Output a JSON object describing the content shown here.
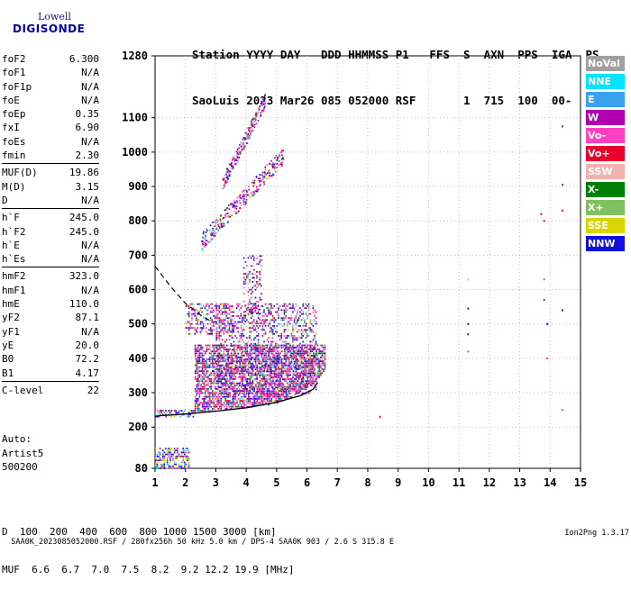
{
  "logo": {
    "line1": "Lowell",
    "line2": "DIGISONDE"
  },
  "header": {
    "line1": "Station YYYY DAY   DDD HHMMSS P1   FFS  S  AXN  PPS  IGA  PS",
    "line2": "SaoLuis 2023 Mar26 085 052000 RSF       1  715  100  00-  11"
  },
  "params": [
    [
      [
        "foF2",
        "6.300"
      ],
      [
        "foF1",
        "N/A"
      ],
      [
        "foF1p",
        "N/A"
      ],
      [
        "foE",
        "N/A"
      ],
      [
        "foEp",
        "0.35"
      ],
      [
        "fxI",
        "6.90"
      ],
      [
        "foEs",
        "N/A"
      ],
      [
        "fmin",
        "2.30"
      ]
    ],
    [
      [
        "MUF(D)",
        "19.86"
      ],
      [
        "M(D)",
        "3.15"
      ],
      [
        "D",
        "N/A"
      ]
    ],
    [
      [
        "h`F",
        "245.0"
      ],
      [
        "h`F2",
        "245.0"
      ],
      [
        "h`E",
        "N/A"
      ],
      [
        "h`Es",
        "N/A"
      ]
    ],
    [
      [
        "hmF2",
        "323.0"
      ],
      [
        "hmF1",
        "N/A"
      ],
      [
        "hmE",
        "110.0"
      ],
      [
        "yF2",
        "87.1"
      ],
      [
        "yF1",
        "N/A"
      ],
      [
        "yE",
        "20.0"
      ],
      [
        "B0",
        "72.2"
      ],
      [
        "B1",
        "4.17"
      ]
    ],
    [
      [
        "C-level",
        "22"
      ]
    ]
  ],
  "auto": {
    "line1": "Auto:",
    "line2": "Artist5",
    "line3": "500200"
  },
  "bottom": {
    "d_label": "D",
    "d_values": "  100  200  400  600  800 1000 1500 3000 [km]",
    "muf_label": "MUF",
    "muf_values": "  6.6  6.7  7.0  7.5  8.2  9.2 12.2 19.9 [MHz]"
  },
  "footer": {
    "left": "SAA0K_2023085052000.RSF / 280fx256h 50 kHz 5.0 km / DPS-4 SAA0K 903 / 2.6 S 315.8 E",
    "right": "Ion2Png 1.3.17"
  },
  "legend": [
    {
      "label": "NoVal",
      "color": "#a0a0a0"
    },
    {
      "label": "NNE",
      "color": "#00e5ff"
    },
    {
      "label": "E",
      "color": "#3aa0f0"
    },
    {
      "label": "W",
      "color": "#b000b0"
    },
    {
      "label": "Vo-",
      "color": "#ff40c0"
    },
    {
      "label": "Vo+",
      "color": "#e8002a"
    },
    {
      "label": "SSW",
      "color": "#f5b0b0"
    },
    {
      "label": "X-",
      "color": "#008000"
    },
    {
      "label": "X+",
      "color": "#80c060"
    },
    {
      "label": "SSE",
      "color": "#d8d800"
    },
    {
      "label": "NNW",
      "color": "#1010e0"
    }
  ],
  "chart_data": {
    "type": "scatter",
    "title": "",
    "xlabel": "",
    "ylabel": "",
    "xlim": [
      1,
      15
    ],
    "ylim": [
      80,
      1280
    ],
    "x_ticks": [
      1,
      2,
      3,
      4,
      5,
      6,
      7,
      8,
      9,
      10,
      11,
      12,
      13,
      14,
      15
    ],
    "y_ticks": [
      80,
      200,
      300,
      400,
      500,
      600,
      700,
      800,
      900,
      1000,
      1100,
      1280
    ],
    "grid": "dotted",
    "legend_position": "right",
    "curves": {
      "trace_lower": [
        [
          1.0,
          232
        ],
        [
          2.0,
          238
        ],
        [
          3.0,
          246
        ],
        [
          4.0,
          256
        ],
        [
          5.0,
          272
        ],
        [
          5.8,
          292
        ],
        [
          6.2,
          310
        ],
        [
          6.35,
          330
        ]
      ],
      "trace_dashed": [
        [
          1.0,
          668
        ],
        [
          1.5,
          610
        ],
        [
          2.0,
          560
        ],
        [
          2.5,
          526
        ],
        [
          2.8,
          510
        ]
      ]
    },
    "echo_regions": [
      {
        "x": [
          1.0,
          2.3
        ],
        "y": [
          228,
          250
        ],
        "density": 0.5,
        "weight": "low"
      },
      {
        "x": [
          2.3,
          6.6
        ],
        "y": [
          240,
          440
        ],
        "density": 0.7,
        "weight": "F"
      },
      {
        "x": [
          3.0,
          6.3
        ],
        "y": [
          300,
          560
        ],
        "density": 0.35,
        "weight": "upper"
      },
      {
        "x": [
          3.9,
          4.5
        ],
        "y": [
          500,
          700
        ],
        "density": 0.3,
        "weight": "column"
      },
      {
        "x": [
          2.0,
          3.6
        ],
        "y": [
          470,
          560
        ],
        "density": 0.4,
        "weight": "oblique"
      },
      {
        "x": [
          1.0,
          2.1
        ],
        "y": [
          80,
          140
        ],
        "density": 0.5,
        "weight": "low"
      }
    ],
    "echo_lines": [
      {
        "from": [
          2.5,
          740
        ],
        "to": [
          5.2,
          990
        ],
        "width": 50,
        "density": 0.45
      },
      {
        "from": [
          3.2,
          910
        ],
        "to": [
          4.6,
          1150
        ],
        "width": 40,
        "density": 0.2
      }
    ],
    "isolated_points": [
      [
        11.3,
        630
      ],
      [
        11.3,
        545
      ],
      [
        11.3,
        500
      ],
      [
        11.3,
        470
      ],
      [
        11.3,
        420
      ],
      [
        13.7,
        820
      ],
      [
        13.8,
        800
      ],
      [
        13.8,
        630
      ],
      [
        13.8,
        570
      ],
      [
        13.9,
        500
      ],
      [
        13.9,
        400
      ],
      [
        14.4,
        1155
      ],
      [
        14.4,
        1075
      ],
      [
        14.4,
        905
      ],
      [
        14.4,
        830
      ],
      [
        14.4,
        540
      ],
      [
        14.4,
        250
      ],
      [
        8.4,
        230
      ]
    ],
    "seed": 20230326
  }
}
